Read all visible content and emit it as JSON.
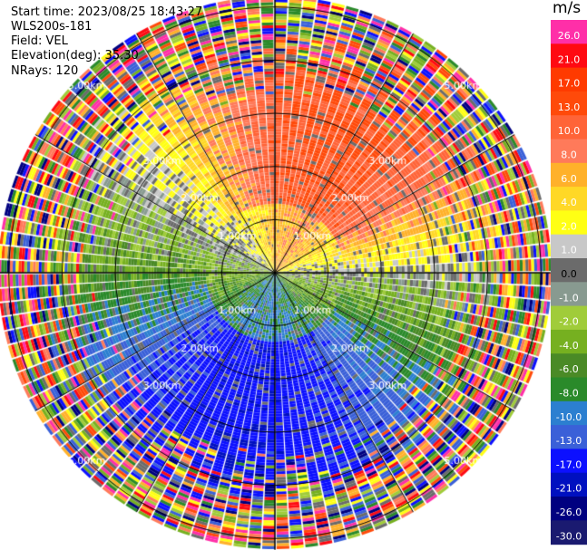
{
  "header": {
    "start_time": "Start time: 2023/08/25 18:43:27",
    "instrument": "WLS200s-181",
    "field": "Field: VEL",
    "elevation": "Elevation(deg): 35.30",
    "nrays": "NRays: 120"
  },
  "colorbar": {
    "unit": "m/s",
    "ticks": [
      "26.0",
      "21.0",
      "17.0",
      "13.0",
      "10.0",
      "8.0",
      "6.0",
      "4.0",
      "2.0",
      "1.0",
      "0.0",
      "-1.0",
      "-2.0",
      "-4.0",
      "-6.0",
      "-8.0",
      "-10.0",
      "-13.0",
      "-17.0",
      "-21.0",
      "-26.0",
      "-30.0"
    ],
    "colors": [
      "#ff2fa8",
      "#ff0a12",
      "#ff3a00",
      "#ff4a0a",
      "#ff6438",
      "#ff7a5a",
      "#ffb12a",
      "#ffd826",
      "#ffff14",
      "#c8c8c8",
      "#6b6b6b",
      "#889a90",
      "#a0cc3a",
      "#76b020",
      "#4a8a26",
      "#2a8a2a",
      "#2c7fd0",
      "#3a60d8",
      "#0c10ff",
      "#0010c0",
      "#000080",
      "#1a1a70"
    ]
  },
  "chart_data": {
    "type": "ppi",
    "field": "VEL",
    "units": "m/s",
    "range_ring_labels": [
      "1.00km",
      "2.00km",
      "3.00km",
      "5.00km"
    ],
    "range_ring_km": [
      1,
      2,
      3,
      4,
      5
    ],
    "max_range_km": 5.2,
    "nrays": 120,
    "clim": [
      -30,
      26
    ],
    "sector_pattern": {
      "north": "red/orange (+13 to +21 m/s)",
      "east": "yellow (+2 to +4 m/s) and gray (0)",
      "south": "blue (-8 to -13 m/s)",
      "west": "yellow-green to gray (-1 to +2 m/s)",
      "outer_range": "noisy multicolour"
    }
  }
}
